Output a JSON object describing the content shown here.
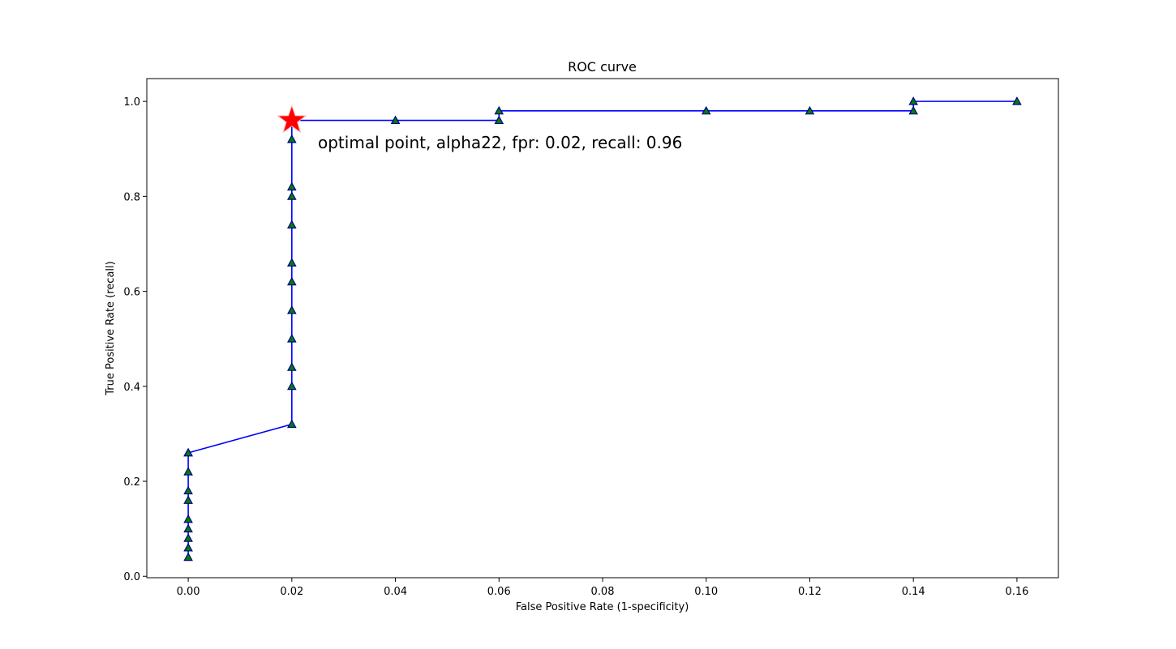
{
  "chart_data": {
    "type": "line",
    "title": "ROC curve",
    "xlabel": "False Positive Rate (1-specificity)",
    "ylabel": "True Positive Rate (recall)",
    "xlim": [
      -0.008,
      0.168
    ],
    "ylim": [
      -0.003,
      1.048
    ],
    "xticks": [
      0.0,
      0.02,
      0.04,
      0.06,
      0.08,
      0.1,
      0.12,
      0.14,
      0.16
    ],
    "xtick_labels": [
      "0.00",
      "0.02",
      "0.04",
      "0.06",
      "0.08",
      "0.10",
      "0.12",
      "0.14",
      "0.16"
    ],
    "yticks": [
      0.0,
      0.2,
      0.4,
      0.6,
      0.8,
      1.0
    ],
    "ytick_labels": [
      "0.0",
      "0.2",
      "0.4",
      "0.6",
      "0.8",
      "1.0"
    ],
    "grid": false,
    "series": [
      {
        "line_color": "#0000ff",
        "marker": "triangle",
        "marker_fill": "#008000",
        "marker_edge": "#00008b",
        "x": [
          0.0,
          0.0,
          0.0,
          0.0,
          0.0,
          0.0,
          0.0,
          0.0,
          0.0,
          0.0,
          0.02,
          0.02,
          0.02,
          0.02,
          0.02,
          0.02,
          0.02,
          0.02,
          0.02,
          0.02,
          0.02,
          0.02,
          0.02,
          0.04,
          0.06,
          0.06,
          0.1,
          0.12,
          0.14,
          0.14,
          0.16
        ],
        "y": [
          0.04,
          0.06,
          0.08,
          0.1,
          0.12,
          0.16,
          0.18,
          0.22,
          0.26,
          0.26,
          0.32,
          0.4,
          0.44,
          0.5,
          0.56,
          0.62,
          0.66,
          0.74,
          0.8,
          0.82,
          0.92,
          0.96,
          0.96,
          0.96,
          0.96,
          0.98,
          0.98,
          0.98,
          0.98,
          1.0,
          1.0
        ]
      }
    ],
    "optimal_point": {
      "x": 0.02,
      "y": 0.96,
      "marker": "star",
      "color": "#ff0000"
    },
    "annotation": "optimal point, alpha22, fpr: 0.02, recall: 0.96"
  }
}
